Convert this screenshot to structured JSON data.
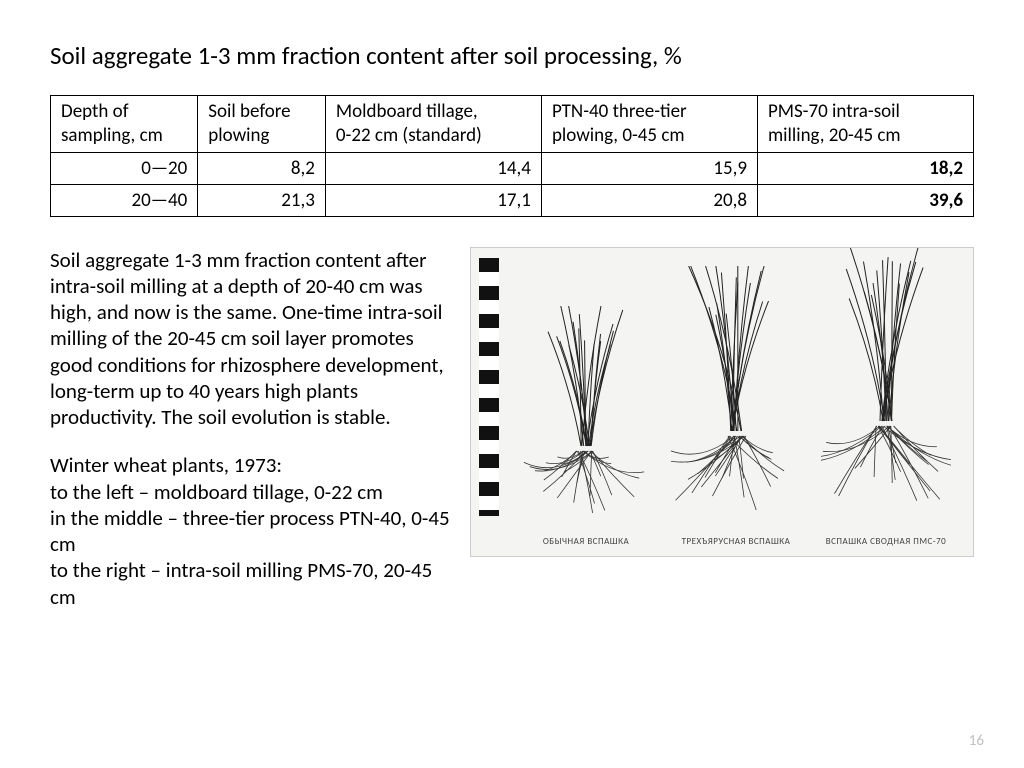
{
  "title": "Soil aggregate 1-3 mm fraction content after soil processing, %",
  "table": {
    "columns": [
      "Depth of sampling, cm",
      "Soil before plowing",
      "Moldboard tillage, 0-22 cm (standard)",
      "PTN-40 three-tier plowing, 0-45 cm",
      "PMS-70 intra-soil milling, 20-45 cm"
    ],
    "col_widths_pct": [
      15,
      13,
      22,
      22,
      22
    ],
    "rows": [
      {
        "cells": [
          "0—20",
          "8,2",
          "14,4",
          "15,9",
          "18,2"
        ],
        "bold_last": true
      },
      {
        "cells": [
          "20—40",
          "21,3",
          "17,1",
          "20,8",
          "39,6"
        ],
        "bold_last": true
      }
    ],
    "border_color": "#000000",
    "header_fontsize": 19,
    "cell_fontsize": 19
  },
  "paragraphs": [
    "Soil aggregate 1-3 mm fraction content after intra-soil milling at a depth of 20-40 cm was high, and now is the same. One-time intra-soil milling of the 20-45 cm soil layer promotes good conditions for rhizosphere development, long-term up to 40 years high plants productivity. The soil evolution is stable.",
    "Winter wheat plants, 1973:\nto the left – moldboard tillage, 0-22 cm\nin the middle – three-tier process PTN-40, 0-45 cm\nto the right – intra-soil milling PMS-70, 20-45 cm"
  ],
  "figure": {
    "type": "photo-sketch",
    "background_color": "#f4f4f2",
    "plants": [
      {
        "caption": "обычная вспашка",
        "shoot_h": 140,
        "root_h": 65
      },
      {
        "caption": "трехъярусная вспашка",
        "shoot_h": 165,
        "root_h": 80
      },
      {
        "caption": "вспашка сводная ПМС-70",
        "shoot_h": 175,
        "root_h": 90
      }
    ]
  },
  "page_number": "16",
  "colors": {
    "text": "#000000",
    "pagenum": "#bfbfbf",
    "background": "#ffffff"
  }
}
